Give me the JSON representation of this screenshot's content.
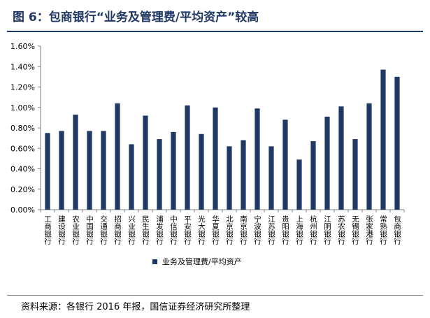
{
  "figure": {
    "title": "图 6：包商银行“业务及管理费/平均资产”较高",
    "source": "资料来源：各银行 2016 年报，国信证券经济研究所整理"
  },
  "colors": {
    "bar": "#1f3864",
    "axis": "#7f7f7f",
    "rule": "#1f3864"
  },
  "chart_data": {
    "type": "bar",
    "categories": [
      "工商银行",
      "建设银行",
      "农业银行",
      "中国银行",
      "交通银行",
      "招商银行",
      "兴业银行",
      "民生银行",
      "浦发银行",
      "中信银行",
      "平安银行",
      "光大银行",
      "华夏银行",
      "北京银行",
      "南京银行",
      "宁波银行",
      "江苏银行",
      "贵阳银行",
      "上海银行",
      "杭州银行",
      "江阴银行",
      "苏农银行",
      "无锡银行",
      "张家港行",
      "常熟银行",
      "包商银行"
    ],
    "series": [
      {
        "name": "业务及管理费/平均资产",
        "values": [
          0.0075,
          0.0077,
          0.0093,
          0.0077,
          0.0077,
          0.0104,
          0.0064,
          0.0092,
          0.0069,
          0.0076,
          0.0102,
          0.0074,
          0.01,
          0.0062,
          0.0068,
          0.0099,
          0.0062,
          0.0088,
          0.0049,
          0.0067,
          0.0091,
          0.0101,
          0.0069,
          0.0104,
          0.0137,
          0.013
        ]
      }
    ],
    "yticks": [
      "0.00%",
      "0.20%",
      "0.40%",
      "0.60%",
      "0.80%",
      "1.00%",
      "1.20%",
      "1.40%",
      "1.60%"
    ],
    "ylim": [
      0,
      0.016
    ],
    "grid": false,
    "legend": "bottom"
  }
}
